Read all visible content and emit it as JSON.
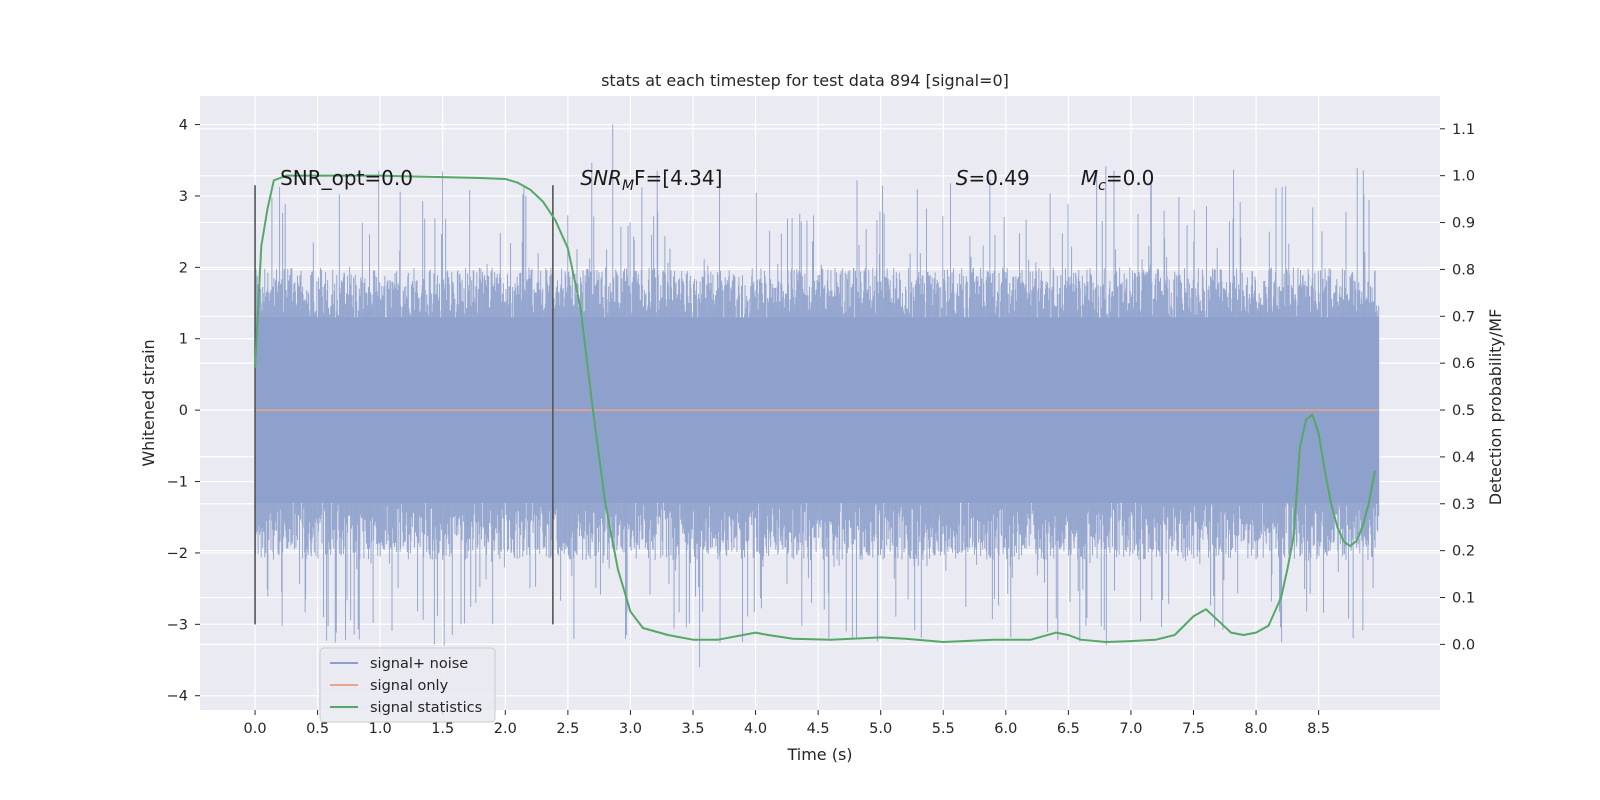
{
  "chart_data": {
    "type": "line",
    "title": "stats at each timestep for test data 894 [signal=0]",
    "xlabel": "Time (s)",
    "ylabel": "Whitened strain",
    "y2label": "Detection probability/MF",
    "xlim": [
      -0.44,
      9.47
    ],
    "ylim": [
      -4.2,
      4.4
    ],
    "y2lim": [
      -0.14,
      1.17
    ],
    "xticks": [
      0.0,
      0.5,
      1.0,
      1.5,
      2.0,
      2.5,
      3.0,
      3.5,
      4.0,
      4.5,
      5.0,
      5.5,
      6.0,
      6.5,
      7.0,
      7.5,
      8.0,
      8.5
    ],
    "xtick_labels": [
      "0.0",
      "0.5",
      "1.0",
      "1.5",
      "2.0",
      "2.5",
      "3.0",
      "3.5",
      "4.0",
      "4.5",
      "5.0",
      "5.5",
      "6.0",
      "6.5",
      "7.0",
      "7.5",
      "8.0",
      "8.5"
    ],
    "yticks": [
      4,
      3,
      2,
      1,
      0,
      -1,
      -2,
      -3,
      -4
    ],
    "ytick_labels": [
      "4",
      "3",
      "2",
      "1",
      "0",
      "−1",
      "−2",
      "−3",
      "−4"
    ],
    "y2ticks": [
      1.1,
      1.0,
      0.9,
      0.8,
      0.7,
      0.6,
      0.5,
      0.4,
      0.3,
      0.2,
      0.1,
      0.0
    ],
    "y2tick_labels": [
      "1.1",
      "1.0",
      "0.9",
      "0.8",
      "0.7",
      "0.6",
      "0.5",
      "0.4",
      "0.3",
      "0.2",
      "0.1",
      "0.0"
    ],
    "grid": true,
    "legend_position": "lower-left",
    "series": [
      {
        "name": "signal+ noise",
        "color": "#8da0cb",
        "kind": "noise",
        "x_range": [
          0.0,
          8.98
        ],
        "core_band": [
          -1.3,
          1.3
        ],
        "peak_max": 4.0,
        "peak_min": -3.6
      },
      {
        "name": "signal only",
        "color": "#e8a38c",
        "kind": "constant",
        "x_range": [
          0.0,
          8.98
        ],
        "value": 0.0
      },
      {
        "name": "signal statistics",
        "color": "#55a868",
        "kind": "line",
        "axis": "right",
        "x": [
          0.0,
          0.05,
          0.1,
          0.15,
          0.25,
          0.5,
          1.0,
          1.5,
          1.8,
          2.0,
          2.1,
          2.2,
          2.3,
          2.4,
          2.5,
          2.6,
          2.7,
          2.8,
          2.9,
          3.0,
          3.1,
          3.3,
          3.5,
          3.7,
          3.9,
          4.0,
          4.1,
          4.3,
          4.6,
          5.0,
          5.2,
          5.5,
          5.9,
          6.2,
          6.4,
          6.5,
          6.6,
          6.8,
          7.0,
          7.2,
          7.35,
          7.5,
          7.6,
          7.7,
          7.8,
          7.9,
          8.0,
          8.1,
          8.2,
          8.25,
          8.3,
          8.35,
          8.4,
          8.45,
          8.5,
          8.55,
          8.6,
          8.65,
          8.7,
          8.75,
          8.8,
          8.85,
          8.9,
          8.95
        ],
        "y": [
          0.59,
          0.85,
          0.93,
          0.99,
          1.0,
          1.0,
          1.0,
          0.997,
          0.995,
          0.993,
          0.985,
          0.97,
          0.945,
          0.905,
          0.845,
          0.72,
          0.5,
          0.3,
          0.16,
          0.07,
          0.035,
          0.02,
          0.01,
          0.01,
          0.02,
          0.025,
          0.02,
          0.012,
          0.01,
          0.015,
          0.012,
          0.005,
          0.01,
          0.01,
          0.025,
          0.02,
          0.01,
          0.005,
          0.007,
          0.01,
          0.02,
          0.06,
          0.075,
          0.05,
          0.025,
          0.02,
          0.025,
          0.04,
          0.1,
          0.16,
          0.23,
          0.42,
          0.48,
          0.49,
          0.45,
          0.37,
          0.3,
          0.25,
          0.22,
          0.21,
          0.22,
          0.25,
          0.3,
          0.37
        ]
      }
    ],
    "vlines": [
      0.0,
      2.38
    ],
    "vline_range": [
      -3.0,
      3.15
    ],
    "annotations": [
      {
        "text": "SNR_opt=0.0",
        "x": 0.2,
        "y": 3.15
      },
      {
        "text_main": "SNR",
        "text_sub": "M",
        "text_rest": "F=[4.34]",
        "x": 2.6,
        "y": 3.15
      },
      {
        "text_main": "S",
        "text_rest": "=0.49",
        "x": 5.6,
        "y": 3.15
      },
      {
        "text_main": "M",
        "text_sub": "c",
        "text_rest": "=0.0",
        "x": 6.6,
        "y": 3.15
      }
    ]
  }
}
